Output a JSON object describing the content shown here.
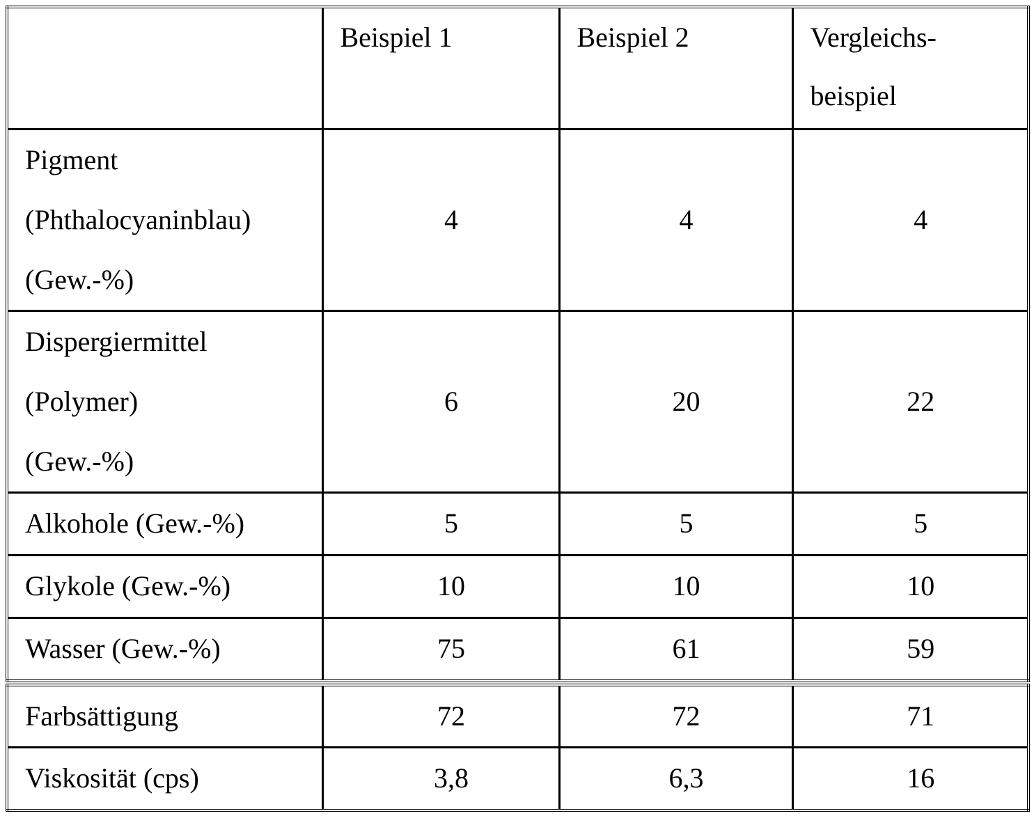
{
  "table": {
    "header": [
      [
        "Beispiel 1"
      ],
      [
        "Beispiel 2"
      ],
      [
        "Vergleichs-",
        "beispiel"
      ]
    ],
    "rows": [
      {
        "label": [
          "Pigment",
          "(Phthalocyaninblau)",
          "(Gew.-%)"
        ],
        "values": [
          "4",
          "4",
          "4"
        ]
      },
      {
        "label": [
          "Dispergiermittel",
          "(Polymer)",
          "(Gew.-%)"
        ],
        "values": [
          "6",
          "20",
          "22"
        ]
      },
      {
        "label": [
          "Alkohole (Gew.-%)"
        ],
        "values": [
          "5",
          "5",
          "5"
        ]
      },
      {
        "label": [
          "Glykole (Gew.-%)"
        ],
        "values": [
          "10",
          "10",
          "10"
        ]
      },
      {
        "label": [
          "Wasser (Gew.-%)"
        ],
        "values": [
          "75",
          "61",
          "59"
        ]
      }
    ],
    "results": [
      {
        "label": [
          "Farbsättigung"
        ],
        "values": [
          "72",
          "72",
          "71"
        ]
      },
      {
        "label": [
          "Viskosität (cps)"
        ],
        "values": [
          "3,8",
          "6,3",
          "16"
        ]
      }
    ]
  }
}
